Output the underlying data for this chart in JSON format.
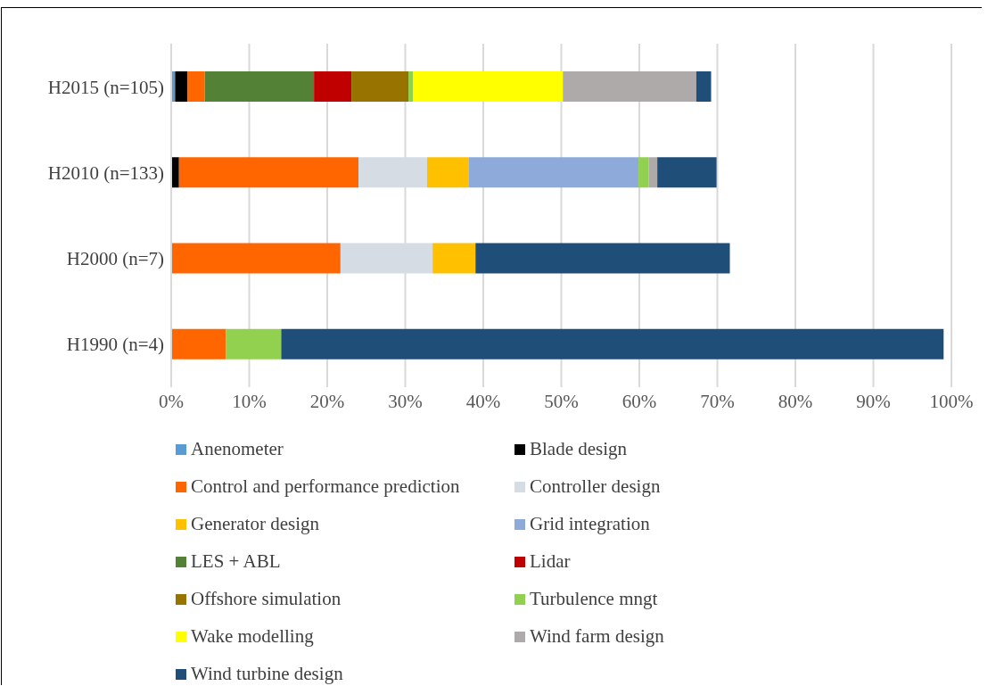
{
  "chart_data": {
    "type": "bar",
    "orientation": "horizontal",
    "stacked": true,
    "categories": [
      "H2015 (n=105)",
      "H2010 (n=133)",
      "H2000 (n=7)",
      "H1990 (n=4)"
    ],
    "xlim": [
      0,
      100
    ],
    "xticks": [
      {
        "value": 0,
        "label": "0%"
      },
      {
        "value": 10,
        "label": "10%"
      },
      {
        "value": 20,
        "label": "20%"
      },
      {
        "value": 30,
        "label": "30%"
      },
      {
        "value": 40,
        "label": "40%"
      },
      {
        "value": 50,
        "label": "50%"
      },
      {
        "value": 60,
        "label": "60%"
      },
      {
        "value": 70,
        "label": "70%"
      },
      {
        "value": 80,
        "label": "80%"
      },
      {
        "value": 90,
        "label": "90%"
      },
      {
        "value": 100,
        "label": "100%"
      }
    ],
    "grid": "x",
    "legend": "bottom",
    "series": [
      {
        "name": "Anenometer",
        "color": "#5b9bd5",
        "values": [
          0.5,
          null,
          null,
          null
        ]
      },
      {
        "name": "Blade design",
        "color": "#000000",
        "values": [
          1.6,
          1.0,
          null,
          null
        ]
      },
      {
        "name": "Control and performance prediction",
        "color": "#ff6600",
        "values": [
          2.2,
          23.0,
          21.7,
          7.0
        ]
      },
      {
        "name": "Controller design",
        "color": "#d6dce4",
        "values": [
          null,
          8.8,
          11.8,
          null
        ]
      },
      {
        "name": "Generator design",
        "color": "#ffc000",
        "values": [
          null,
          5.3,
          5.5,
          null
        ]
      },
      {
        "name": "Grid integration",
        "color": "#8eaadb",
        "values": [
          null,
          21.8,
          null,
          null
        ]
      },
      {
        "name": "LES + ABL",
        "color": "#538135",
        "values": [
          14.0,
          null,
          null,
          null
        ]
      },
      {
        "name": "Lidar",
        "color": "#c00000",
        "values": [
          4.8,
          null,
          null,
          null
        ]
      },
      {
        "name": "Offshore simulation",
        "color": "#997300",
        "values": [
          7.3,
          null,
          null,
          null
        ]
      },
      {
        "name": "Turbulence mngt",
        "color": "#92d050",
        "values": [
          0.6,
          1.3,
          null,
          7.1
        ]
      },
      {
        "name": "Wake modelling",
        "color": "#ffff00",
        "values": [
          19.2,
          null,
          null,
          null
        ]
      },
      {
        "name": "Wind farm design",
        "color": "#aeaaaa",
        "values": [
          17.1,
          1.1,
          null,
          null
        ]
      },
      {
        "name": "Wind turbine design",
        "color": "#1f4e79",
        "values": [
          1.9,
          7.6,
          32.6,
          84.9
        ]
      }
    ]
  }
}
